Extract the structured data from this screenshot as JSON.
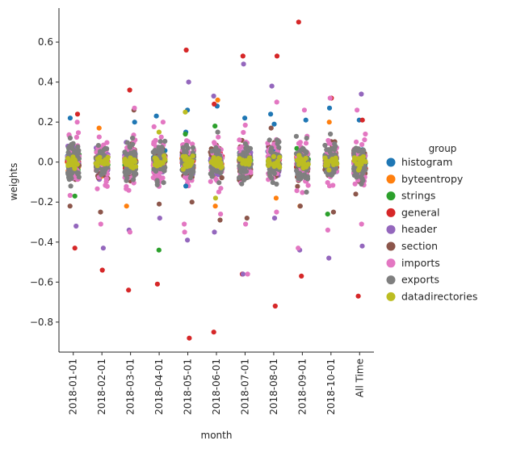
{
  "chart_data": {
    "type": "scatter",
    "subtype": "strip",
    "title": "",
    "xlabel": "month",
    "ylabel": "weights",
    "categories": [
      "2018-01-01",
      "2018-02-01",
      "2018-03-01",
      "2018-04-01",
      "2018-05-01",
      "2018-06-01",
      "2018-07-01",
      "2018-08-01",
      "2018-09-01",
      "2018-10-01",
      "All Time"
    ],
    "ylim": [
      -0.95,
      0.77
    ],
    "yticks": [
      -0.8,
      -0.6,
      -0.4,
      -0.2,
      0.0,
      0.2,
      0.4,
      0.6
    ],
    "ytick_labels": [
      "−0.8",
      "−0.6",
      "−0.4",
      "−0.2",
      "0.0",
      "0.2",
      "0.4",
      "0.6"
    ],
    "grid": false,
    "legend": {
      "title": "group",
      "placement": "right",
      "entries": [
        "histogram",
        "byteentropy",
        "strings",
        "general",
        "header",
        "section",
        "imports",
        "exports",
        "datadirectories"
      ]
    },
    "series": [
      {
        "name": "histogram",
        "color": "#1f77b4",
        "spread": 0.05,
        "extremes": [
          [
            0,
            0.22
          ],
          [
            2,
            0.2
          ],
          [
            3,
            0.23
          ],
          [
            4,
            0.26
          ],
          [
            4,
            0.15
          ],
          [
            5,
            0.28
          ],
          [
            6,
            0.22
          ],
          [
            7,
            0.24
          ],
          [
            7,
            0.19
          ],
          [
            8,
            0.21
          ],
          [
            9,
            0.27
          ],
          [
            10,
            0.21
          ],
          [
            4,
            -0.12
          ]
        ]
      },
      {
        "name": "byteentropy",
        "color": "#ff7f0e",
        "spread": 0.05,
        "extremes": [
          [
            5,
            0.31
          ],
          [
            5,
            -0.22
          ],
          [
            7,
            -0.18
          ],
          [
            8,
            -0.22
          ],
          [
            2,
            -0.22
          ],
          [
            9,
            0.2
          ],
          [
            1,
            0.17
          ]
        ]
      },
      {
        "name": "strings",
        "color": "#2ca02c",
        "spread": 0.05,
        "extremes": [
          [
            3,
            -0.44
          ],
          [
            4,
            0.14
          ],
          [
            9,
            -0.26
          ],
          [
            0,
            -0.17
          ],
          [
            5,
            0.18
          ]
        ]
      },
      {
        "name": "general",
        "color": "#d62728",
        "spread": 0.04,
        "extremes": [
          [
            0,
            0.24
          ],
          [
            0,
            -0.43
          ],
          [
            1,
            -0.54
          ],
          [
            2,
            0.36
          ],
          [
            2,
            -0.64
          ],
          [
            3,
            -0.61
          ],
          [
            4,
            0.56
          ],
          [
            4,
            -0.88
          ],
          [
            5,
            0.29
          ],
          [
            5,
            -0.85
          ],
          [
            6,
            0.53
          ],
          [
            6,
            -0.56
          ],
          [
            7,
            0.53
          ],
          [
            7,
            -0.72
          ],
          [
            8,
            0.7
          ],
          [
            8,
            -0.57
          ],
          [
            9,
            0.32
          ],
          [
            10,
            -0.67
          ],
          [
            10,
            0.21
          ]
        ]
      },
      {
        "name": "header",
        "color": "#9467bd",
        "spread": 0.07,
        "extremes": [
          [
            0,
            -0.32
          ],
          [
            1,
            -0.43
          ],
          [
            2,
            -0.34
          ],
          [
            3,
            -0.28
          ],
          [
            4,
            0.4
          ],
          [
            4,
            -0.39
          ],
          [
            5,
            0.33
          ],
          [
            5,
            -0.35
          ],
          [
            6,
            0.49
          ],
          [
            6,
            -0.56
          ],
          [
            7,
            0.38
          ],
          [
            7,
            -0.28
          ],
          [
            8,
            -0.44
          ],
          [
            9,
            -0.48
          ],
          [
            10,
            0.34
          ],
          [
            10,
            -0.42
          ]
        ]
      },
      {
        "name": "section",
        "color": "#8c564b",
        "spread": 0.1,
        "extremes": [
          [
            0,
            -0.22
          ],
          [
            1,
            -0.25
          ],
          [
            2,
            0.26
          ],
          [
            3,
            -0.21
          ],
          [
            4,
            -0.2
          ],
          [
            5,
            -0.29
          ],
          [
            6,
            -0.28
          ],
          [
            7,
            0.17
          ],
          [
            8,
            -0.22
          ],
          [
            9,
            -0.25
          ],
          [
            10,
            -0.16
          ]
        ]
      },
      {
        "name": "imports",
        "color": "#e377c2",
        "spread": 0.12,
        "extremes": [
          [
            0,
            0.2
          ],
          [
            1,
            -0.31
          ],
          [
            2,
            0.27
          ],
          [
            2,
            -0.35
          ],
          [
            3,
            0.2
          ],
          [
            4,
            -0.35
          ],
          [
            4,
            -0.31
          ],
          [
            5,
            -0.26
          ],
          [
            6,
            -0.56
          ],
          [
            6,
            -0.31
          ],
          [
            7,
            0.3
          ],
          [
            7,
            -0.25
          ],
          [
            8,
            0.26
          ],
          [
            8,
            -0.43
          ],
          [
            9,
            0.32
          ],
          [
            9,
            -0.34
          ],
          [
            10,
            0.26
          ],
          [
            10,
            -0.31
          ]
        ]
      },
      {
        "name": "exports",
        "color": "#7f7f7f",
        "spread": 0.09,
        "extremes": [
          [
            0,
            0.12
          ],
          [
            0,
            -0.12
          ],
          [
            2,
            0.12
          ],
          [
            5,
            0.15
          ],
          [
            8,
            -0.15
          ],
          [
            9,
            0.14
          ]
        ]
      },
      {
        "name": "datadirectories",
        "color": "#bcbd22",
        "spread": 0.03,
        "extremes": [
          [
            3,
            0.15
          ],
          [
            4,
            0.25
          ],
          [
            5,
            -0.18
          ],
          [
            10,
            -0.04
          ]
        ]
      }
    ]
  }
}
